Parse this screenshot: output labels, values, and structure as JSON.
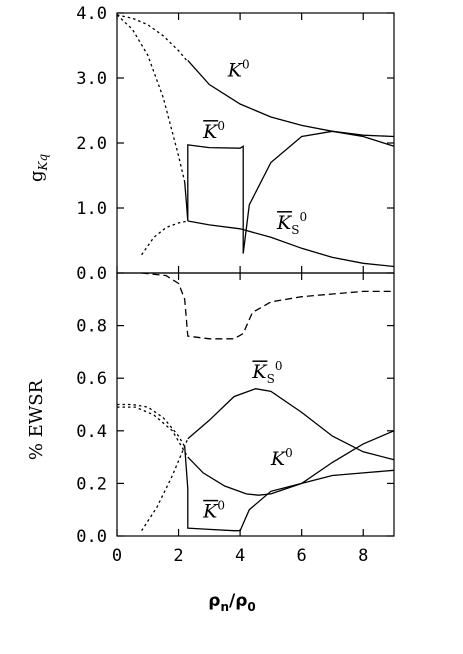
{
  "chart_data": [
    {
      "type": "line",
      "panel": "top",
      "ylabel": "g",
      "ylabel_sub": "Kq",
      "xlim": [
        0,
        9
      ],
      "ylim": [
        0,
        4
      ],
      "yticks": [
        "0.0",
        "1.0",
        "2.0",
        "3.0",
        "4.0"
      ],
      "ytick_values": [
        0,
        1,
        2,
        3,
        4
      ],
      "xticks": [
        0,
        2,
        4,
        6,
        8
      ],
      "series": [
        {
          "name": "K0",
          "style": "solid",
          "x": [
            2.3,
            3,
            4,
            5,
            6,
            7,
            8,
            9
          ],
          "y": [
            3.27,
            2.9,
            2.6,
            2.4,
            2.27,
            2.18,
            2.12,
            2.1
          ]
        },
        {
          "name": "K0",
          "style": "dashed",
          "x": [
            0,
            0.5,
            1,
            1.5,
            2,
            2.3
          ],
          "y": [
            3.97,
            3.92,
            3.82,
            3.65,
            3.42,
            3.25
          ]
        },
        {
          "name": "K0bar",
          "style": "solid",
          "x": [
            2.2,
            2.25,
            2.3,
            2.3,
            3,
            4,
            4.1,
            4.1,
            4.3,
            5,
            6,
            7,
            8,
            9
          ],
          "y": [
            1.4,
            1.1,
            0.8,
            1.97,
            1.93,
            1.92,
            1.95,
            0.3,
            1.05,
            1.7,
            2.1,
            2.18,
            2.1,
            1.95
          ]
        },
        {
          "name": "K0bar",
          "style": "dashed",
          "x": [
            0,
            0.5,
            1,
            1.5,
            2,
            2.2
          ],
          "y": [
            3.97,
            3.75,
            3.35,
            2.7,
            1.8,
            1.4
          ]
        },
        {
          "name": "KS0bar",
          "style": "solid",
          "x": [
            2.3,
            3,
            4,
            5,
            6,
            7,
            8,
            9
          ],
          "y": [
            0.8,
            0.74,
            0.68,
            0.55,
            0.38,
            0.24,
            0.15,
            0.1
          ]
        },
        {
          "name": "KS0bar",
          "style": "dashed",
          "x": [
            0.8,
            1.2,
            1.6,
            2.0,
            2.3
          ],
          "y": [
            0.28,
            0.55,
            0.7,
            0.77,
            0.8
          ]
        }
      ],
      "annotations": [
        {
          "text": "K",
          "sup": "0",
          "bar": false,
          "x": 3.6,
          "y": 3.02
        },
        {
          "text": "K",
          "sup": "0",
          "bar": true,
          "x": 2.8,
          "y": 2.08
        },
        {
          "text": "K",
          "sub": "S",
          "sup": "0",
          "bar": true,
          "x": 5.2,
          "y": 0.68
        }
      ]
    },
    {
      "type": "line",
      "panel": "bottom",
      "ylabel": "% EWSR",
      "xlabel": "ρ",
      "xlabel_sub_1": "n",
      "xlabel_slash": "/ρ",
      "xlabel_sub_2": "0",
      "xlim": [
        0,
        9
      ],
      "ylim": [
        0,
        1.0
      ],
      "yticks": [
        "0.0",
        "0.2",
        "0.4",
        "0.6",
        "0.8"
      ],
      "ytick_values": [
        0,
        0.2,
        0.4,
        0.6,
        0.8
      ],
      "xticks": [
        "0",
        "2",
        "4",
        "6",
        "8"
      ],
      "xtick_values": [
        0,
        2,
        4,
        6,
        8
      ],
      "series": [
        {
          "name": "K0",
          "style": "solid",
          "x": [
            2.3,
            2.8,
            3.5,
            4.2,
            4.6,
            5,
            6,
            7,
            8,
            9
          ],
          "y": [
            0.3,
            0.24,
            0.19,
            0.16,
            0.155,
            0.16,
            0.2,
            0.28,
            0.35,
            0.4
          ]
        },
        {
          "name": "K0",
          "style": "dashed",
          "x": [
            0,
            0.6,
            1.2,
            1.8,
            2.3
          ],
          "y": [
            0.49,
            0.49,
            0.46,
            0.4,
            0.3
          ]
        },
        {
          "name": "K0bar",
          "style": "solid",
          "x": [
            2.2,
            2.3,
            2.3,
            3,
            3.8,
            4,
            4.3,
            5,
            6,
            7,
            8,
            9
          ],
          "y": [
            0.34,
            0.18,
            0.03,
            0.025,
            0.02,
            0.02,
            0.1,
            0.17,
            0.2,
            0.23,
            0.24,
            0.25
          ]
        },
        {
          "name": "K0bar",
          "style": "dashed",
          "x": [
            0,
            0.5,
            1,
            1.5,
            2,
            2.2
          ],
          "y": [
            0.5,
            0.5,
            0.49,
            0.45,
            0.38,
            0.34
          ]
        },
        {
          "name": "KS0bar",
          "style": "solid",
          "x": [
            2.3,
            3,
            3.8,
            4.5,
            5,
            6,
            7,
            8,
            9
          ],
          "y": [
            0.37,
            0.44,
            0.53,
            0.56,
            0.55,
            0.47,
            0.38,
            0.32,
            0.29
          ]
        },
        {
          "name": "KS0bar",
          "style": "dashed",
          "x": [
            0.8,
            1.3,
            1.8,
            2.3
          ],
          "y": [
            0.02,
            0.11,
            0.23,
            0.37
          ]
        },
        {
          "name": "K0bar sum",
          "style": "longdash",
          "x": [
            0.8,
            1.6,
            2.0,
            2.2,
            2.3,
            3,
            3.8,
            4.1,
            4.4,
            5,
            6,
            7,
            8,
            9
          ],
          "y": [
            1.0,
            0.99,
            0.96,
            0.9,
            0.76,
            0.75,
            0.75,
            0.77,
            0.85,
            0.89,
            0.91,
            0.92,
            0.93,
            0.93
          ]
        }
      ],
      "annotations": [
        {
          "text": "K",
          "sub": "S",
          "sup": "0",
          "bar": true,
          "x": 4.4,
          "y": 0.6
        },
        {
          "text": "K",
          "sup": "0",
          "bar": false,
          "x": 5.0,
          "y": 0.27
        },
        {
          "text": "K",
          "sup": "0",
          "bar": true,
          "x": 2.8,
          "y": 0.07
        }
      ]
    }
  ]
}
